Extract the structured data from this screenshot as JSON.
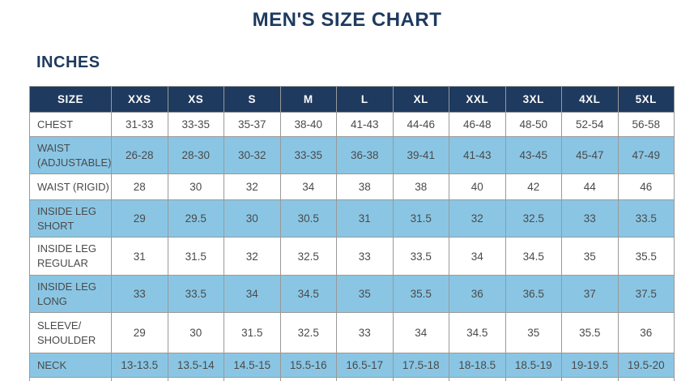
{
  "page": {
    "title": "MEN'S SIZE CHART",
    "units_label": "INCHES"
  },
  "colors": {
    "navy_header": "#1e3a5f",
    "light_blue_row": "#8ac6e4",
    "grid_border": "#999999",
    "cell_text": "#4a4a4a",
    "header_text": "#fafafa"
  },
  "table": {
    "columns": [
      "SIZE",
      "XXS",
      "XS",
      "S",
      "M",
      "L",
      "XL",
      "XXL",
      "3XL",
      "4XL",
      "5XL"
    ],
    "rows": [
      {
        "label": "CHEST",
        "values": [
          "31-33",
          "33-35",
          "35-37",
          "38-40",
          "41-43",
          "44-46",
          "46-48",
          "48-50",
          "52-54",
          "56-58"
        ]
      },
      {
        "label": "WAIST\n(ADJUSTABLE)",
        "values": [
          "26-28",
          "28-30",
          "30-32",
          "33-35",
          "36-38",
          "39-41",
          "41-43",
          "43-45",
          "45-47",
          "47-49"
        ]
      },
      {
        "label": "WAIST (RIGID)",
        "values": [
          "28",
          "30",
          "32",
          "34",
          "38",
          "38",
          "40",
          "42",
          "44",
          "46"
        ]
      },
      {
        "label": "INSIDE LEG\nSHORT",
        "values": [
          "29",
          "29.5",
          "30",
          "30.5",
          "31",
          "31.5",
          "32",
          "32.5",
          "33",
          "33.5"
        ]
      },
      {
        "label": "INSIDE LEG\nREGULAR",
        "values": [
          "31",
          "31.5",
          "32",
          "32.5",
          "33",
          "33.5",
          "34",
          "34.5",
          "35",
          "35.5"
        ]
      },
      {
        "label": "INSIDE LEG\nLONG",
        "values": [
          "33",
          "33.5",
          "34",
          "34.5",
          "35",
          "35.5",
          "36",
          "36.5",
          "37",
          "37.5"
        ]
      },
      {
        "label": "SLEEVE/\nSHOULDER",
        "values": [
          "29",
          "30",
          "31.5",
          "32.5",
          "33",
          "34",
          "34.5",
          "35",
          "35.5",
          "36"
        ]
      },
      {
        "label": "NECK",
        "values": [
          "13-13.5",
          "13.5-14",
          "14.5-15",
          "15.5-16",
          "16.5-17",
          "17.5-18",
          "18-18.5",
          "18.5-19",
          "19-19.5",
          "19.5-20"
        ]
      }
    ]
  }
}
